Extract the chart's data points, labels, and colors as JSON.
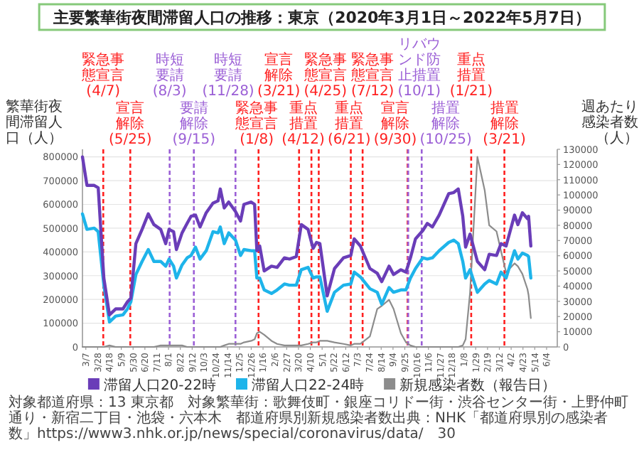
{
  "chart_data": {
    "type": "line",
    "title": "主要繁華街夜間滞留人口の推移：東京（2020年3月1日～2022年5月7日）",
    "ylabel": "繁華街夜間滞留人口（人）",
    "y2label": "週あたり感染者数（人）",
    "x": [
      "2020-03-01",
      "2020-03-09",
      "2020-03-22",
      "2020-03-29",
      "2020-04-08",
      "2020-04-18",
      "2020-04-29",
      "2020-05-12",
      "2020-05-20",
      "2020-05-26",
      "2020-06-04",
      "2020-06-15",
      "2020-06-26",
      "2020-07-06",
      "2020-07-18",
      "2020-07-27",
      "2020-08-02",
      "2020-08-10",
      "2020-08-15",
      "2020-08-25",
      "2020-09-03",
      "2020-09-10",
      "2020-09-18",
      "2020-09-26",
      "2020-10-07",
      "2020-10-19",
      "2020-10-28",
      "2020-11-01",
      "2020-11-08",
      "2020-11-16",
      "2020-11-28",
      "2020-12-07",
      "2020-12-13",
      "2020-12-26",
      "2021-01-01",
      "2021-01-05",
      "2021-01-10",
      "2021-01-18",
      "2021-01-31",
      "2021-02-10",
      "2021-02-23",
      "2021-03-04",
      "2021-03-16",
      "2021-03-25",
      "2021-04-06",
      "2021-04-15",
      "2021-04-21",
      "2021-04-27",
      "2021-05-10",
      "2021-05-23",
      "2021-06-08",
      "2021-06-21",
      "2021-06-27",
      "2021-07-08",
      "2021-07-25",
      "2021-08-07",
      "2021-08-15",
      "2021-08-28",
      "2021-09-05",
      "2021-09-18",
      "2021-09-27",
      "2021-10-05",
      "2021-10-14",
      "2021-10-27",
      "2021-11-04",
      "2021-11-13",
      "2021-11-25",
      "2021-12-12",
      "2021-12-21",
      "2021-12-29",
      "2022-01-06",
      "2022-01-11",
      "2022-01-19",
      "2022-02-01",
      "2022-02-14",
      "2022-02-22",
      "2022-03-07",
      "2022-03-15",
      "2022-03-24",
      "2022-04-08",
      "2022-04-14",
      "2022-04-22",
      "2022-05-01",
      "2022-05-03",
      "2022-05-07"
    ],
    "series": [
      {
        "name": "滞留人口20-22時",
        "color": "#6a3db8",
        "values": [
          800000,
          680000,
          680000,
          670000,
          290000,
          135000,
          160000,
          160000,
          190000,
          205000,
          435000,
          495000,
          560000,
          515000,
          495000,
          435000,
          495000,
          485000,
          410000,
          480000,
          520000,
          550000,
          555000,
          505000,
          565000,
          605000,
          615000,
          665000,
          585000,
          610000,
          570000,
          530000,
          600000,
          610000,
          600000,
          405000,
          425000,
          320000,
          340000,
          335000,
          375000,
          370000,
          380000,
          515000,
          495000,
          415000,
          440000,
          435000,
          215000,
          330000,
          375000,
          385000,
          455000,
          425000,
          330000,
          310000,
          275000,
          340000,
          305000,
          325000,
          315000,
          375000,
          455000,
          490000,
          520000,
          505000,
          555000,
          645000,
          650000,
          665000,
          550000,
          420000,
          475000,
          360000,
          325000,
          390000,
          385000,
          435000,
          425000,
          555000,
          515000,
          565000,
          540000,
          550000,
          425000
        ]
      },
      {
        "name": "滞留人口22-24時",
        "color": "#1eb4ea",
        "values": [
          560000,
          495000,
          500000,
          485000,
          260000,
          105000,
          130000,
          135000,
          160000,
          190000,
          305000,
          360000,
          410000,
          360000,
          360000,
          340000,
          370000,
          340000,
          290000,
          345000,
          375000,
          385000,
          420000,
          370000,
          405000,
          485000,
          480000,
          505000,
          435000,
          480000,
          450000,
          385000,
          410000,
          405000,
          405000,
          290000,
          290000,
          240000,
          225000,
          240000,
          265000,
          260000,
          260000,
          325000,
          335000,
          290000,
          295000,
          295000,
          150000,
          230000,
          260000,
          265000,
          315000,
          295000,
          245000,
          230000,
          180000,
          250000,
          230000,
          240000,
          240000,
          290000,
          330000,
          375000,
          370000,
          375000,
          405000,
          440000,
          450000,
          435000,
          360000,
          290000,
          325000,
          230000,
          265000,
          280000,
          265000,
          315000,
          290000,
          405000,
          370000,
          395000,
          385000,
          380000,
          290000
        ]
      },
      {
        "name": "新規感染者数（報告日）",
        "color": "#8c8c8c",
        "axis": "y2",
        "values": [
          0,
          0,
          0,
          0,
          0,
          1000,
          0,
          0,
          0,
          0,
          0,
          0,
          0,
          0,
          1000,
          1000,
          1000,
          1000,
          1000,
          1000,
          0,
          0,
          0,
          0,
          0,
          0,
          0,
          0,
          1000,
          2000,
          2000,
          2000,
          3000,
          4000,
          5000,
          9000,
          10000,
          8000,
          4000,
          2000,
          1000,
          1000,
          1000,
          1000,
          2000,
          3000,
          3000,
          4000,
          4000,
          3000,
          2000,
          1000,
          2000,
          2000,
          7000,
          25000,
          27000,
          31000,
          25000,
          9000,
          3000,
          1000,
          0,
          0,
          0,
          0,
          0,
          0,
          0,
          0,
          1000,
          5000,
          36000,
          125000,
          103000,
          80000,
          76000,
          63000,
          49000,
          55000,
          53000,
          48000,
          38000,
          34000,
          19000
        ]
      }
    ],
    "xlim": [
      "2020-03-01",
      "2022-06-23"
    ],
    "xticks": [
      {
        "value": "2020-03-07",
        "label": "3/7"
      },
      {
        "value": "2020-03-28",
        "label": "3/28"
      },
      {
        "value": "2020-04-18",
        "label": "4/18"
      },
      {
        "value": "2020-05-09",
        "label": "5/9"
      },
      {
        "value": "2020-05-30",
        "label": "5/30"
      },
      {
        "value": "2020-06-20",
        "label": "6/20"
      },
      {
        "value": "2020-07-11",
        "label": "7/11"
      },
      {
        "value": "2020-08-01",
        "label": "8/1"
      },
      {
        "value": "2020-08-22",
        "label": "8/22"
      },
      {
        "value": "2020-09-12",
        "label": "9/12"
      },
      {
        "value": "2020-10-03",
        "label": "10/3"
      },
      {
        "value": "2020-10-24",
        "label": "10/24"
      },
      {
        "value": "2020-11-14",
        "label": "11/14"
      },
      {
        "value": "2020-12-05",
        "label": "12/5"
      },
      {
        "value": "2020-12-26",
        "label": "12/26"
      },
      {
        "value": "2021-01-16",
        "label": "1/16"
      },
      {
        "value": "2021-02-06",
        "label": "2/6"
      },
      {
        "value": "2021-02-27",
        "label": "2/27"
      },
      {
        "value": "2021-03-20",
        "label": "3/20"
      },
      {
        "value": "2021-04-10",
        "label": "4/10"
      },
      {
        "value": "2021-05-01",
        "label": "5/1"
      },
      {
        "value": "2021-05-22",
        "label": "5/22"
      },
      {
        "value": "2021-06-12",
        "label": "6/12"
      },
      {
        "value": "2021-07-03",
        "label": "7/3"
      },
      {
        "value": "2021-07-24",
        "label": "7/24"
      },
      {
        "value": "2021-08-14",
        "label": "8/14"
      },
      {
        "value": "2021-09-04",
        "label": "9/4"
      },
      {
        "value": "2021-09-25",
        "label": "9/25"
      },
      {
        "value": "2021-10-16",
        "label": "10/16"
      },
      {
        "value": "2021-11-06",
        "label": "11/6"
      },
      {
        "value": "2021-11-27",
        "label": "11/27"
      },
      {
        "value": "2021-12-18",
        "label": "12/18"
      },
      {
        "value": "2022-01-08",
        "label": "1/8"
      },
      {
        "value": "2022-01-29",
        "label": "1/29"
      },
      {
        "value": "2022-02-19",
        "label": "2/19"
      },
      {
        "value": "2022-03-12",
        "label": "3/12"
      },
      {
        "value": "2022-04-02",
        "label": "4/2"
      },
      {
        "value": "2022-04-23",
        "label": "4/23"
      },
      {
        "value": "2022-05-14",
        "label": "5/14"
      },
      {
        "value": "2022-06-04",
        "label": "6/4"
      }
    ],
    "ylim": [
      0,
      832000
    ],
    "yticks": [
      0,
      100000,
      200000,
      300000,
      400000,
      500000,
      600000,
      700000,
      800000
    ],
    "y2lim": [
      0,
      130000
    ],
    "y2ticks": [
      0,
      10000,
      20000,
      30000,
      40000,
      50000,
      60000,
      70000,
      80000,
      90000,
      100000,
      110000,
      120000,
      130000
    ],
    "ref_lines": [
      {
        "axis": "x",
        "value": "2020-04-07",
        "label": "緊急事態宣言(4/7)",
        "color": "#ff2020",
        "line_style": "dashed"
      },
      {
        "axis": "x",
        "value": "2020-05-25",
        "label": "宣言解除(5/25)",
        "color": "#ff2020",
        "line_style": "dashed"
      },
      {
        "axis": "x",
        "value": "2020-08-03",
        "label": "時短要請(8/3)",
        "color": "#9b5fd6",
        "line_style": "dashed"
      },
      {
        "axis": "x",
        "value": "2020-09-15",
        "label": "要請解除(9/15)",
        "color": "#9b5fd6",
        "line_style": "dashed"
      },
      {
        "axis": "x",
        "value": "2020-11-28",
        "label": "時短要請(11/28)",
        "color": "#9b5fd6",
        "line_style": "dashed"
      },
      {
        "axis": "x",
        "value": "2021-01-08",
        "label": "緊急事態宣言(1/8)",
        "color": "#ff2020",
        "line_style": "dashed"
      },
      {
        "axis": "x",
        "value": "2021-03-21",
        "label": "宣言解除(3/21)",
        "color": "#ff2020",
        "line_style": "dashed"
      },
      {
        "axis": "x",
        "value": "2021-04-12",
        "label": "重点措置(4/12)",
        "color": "#ff2020",
        "line_style": "dashed"
      },
      {
        "axis": "x",
        "value": "2021-04-25",
        "label": "緊急事態宣言(4/25)",
        "color": "#ff2020",
        "line_style": "dashed"
      },
      {
        "axis": "x",
        "value": "2021-06-21",
        "label": "重点措置(6/21)",
        "color": "#ff2020",
        "line_style": "dashed"
      },
      {
        "axis": "x",
        "value": "2021-07-12",
        "label": "緊急事態宣言(7/12)",
        "color": "#ff2020",
        "line_style": "dashed"
      },
      {
        "axis": "x",
        "value": "2021-09-30",
        "label": "宣言解除(9/30)",
        "color": "#ff2020",
        "line_style": "dashed"
      },
      {
        "axis": "x",
        "value": "2021-10-01",
        "label": "リバウンド防止措置(10/1)",
        "color": "#9b5fd6",
        "line_style": "dashed"
      },
      {
        "axis": "x",
        "value": "2021-10-25",
        "label": "措置解除(10/25)",
        "color": "#9b5fd6",
        "line_style": "dashed"
      },
      {
        "axis": "x",
        "value": "2022-01-21",
        "label": "重点措置(1/21)",
        "color": "#ff2020",
        "line_style": "dashed"
      },
      {
        "axis": "x",
        "value": "2022-03-21",
        "label": "措置解除(3/21)",
        "color": "#ff2020",
        "line_style": "dashed"
      }
    ],
    "annotations": [
      "対象都道府県：13 東京都",
      "対象繁華街：歌舞伎町・銀座コリドー街・渋谷センター街・上野仲町通り・新宿二丁目・池袋・六本木",
      "都道府県別新規感染者数出典：NHK「都道府県別の感染者数」https://www3.nhk.or.jp/news/special/coronavirus/data/",
      "30"
    ],
    "grid": "y",
    "legend": "bottom",
    "line_style": "solid"
  }
}
